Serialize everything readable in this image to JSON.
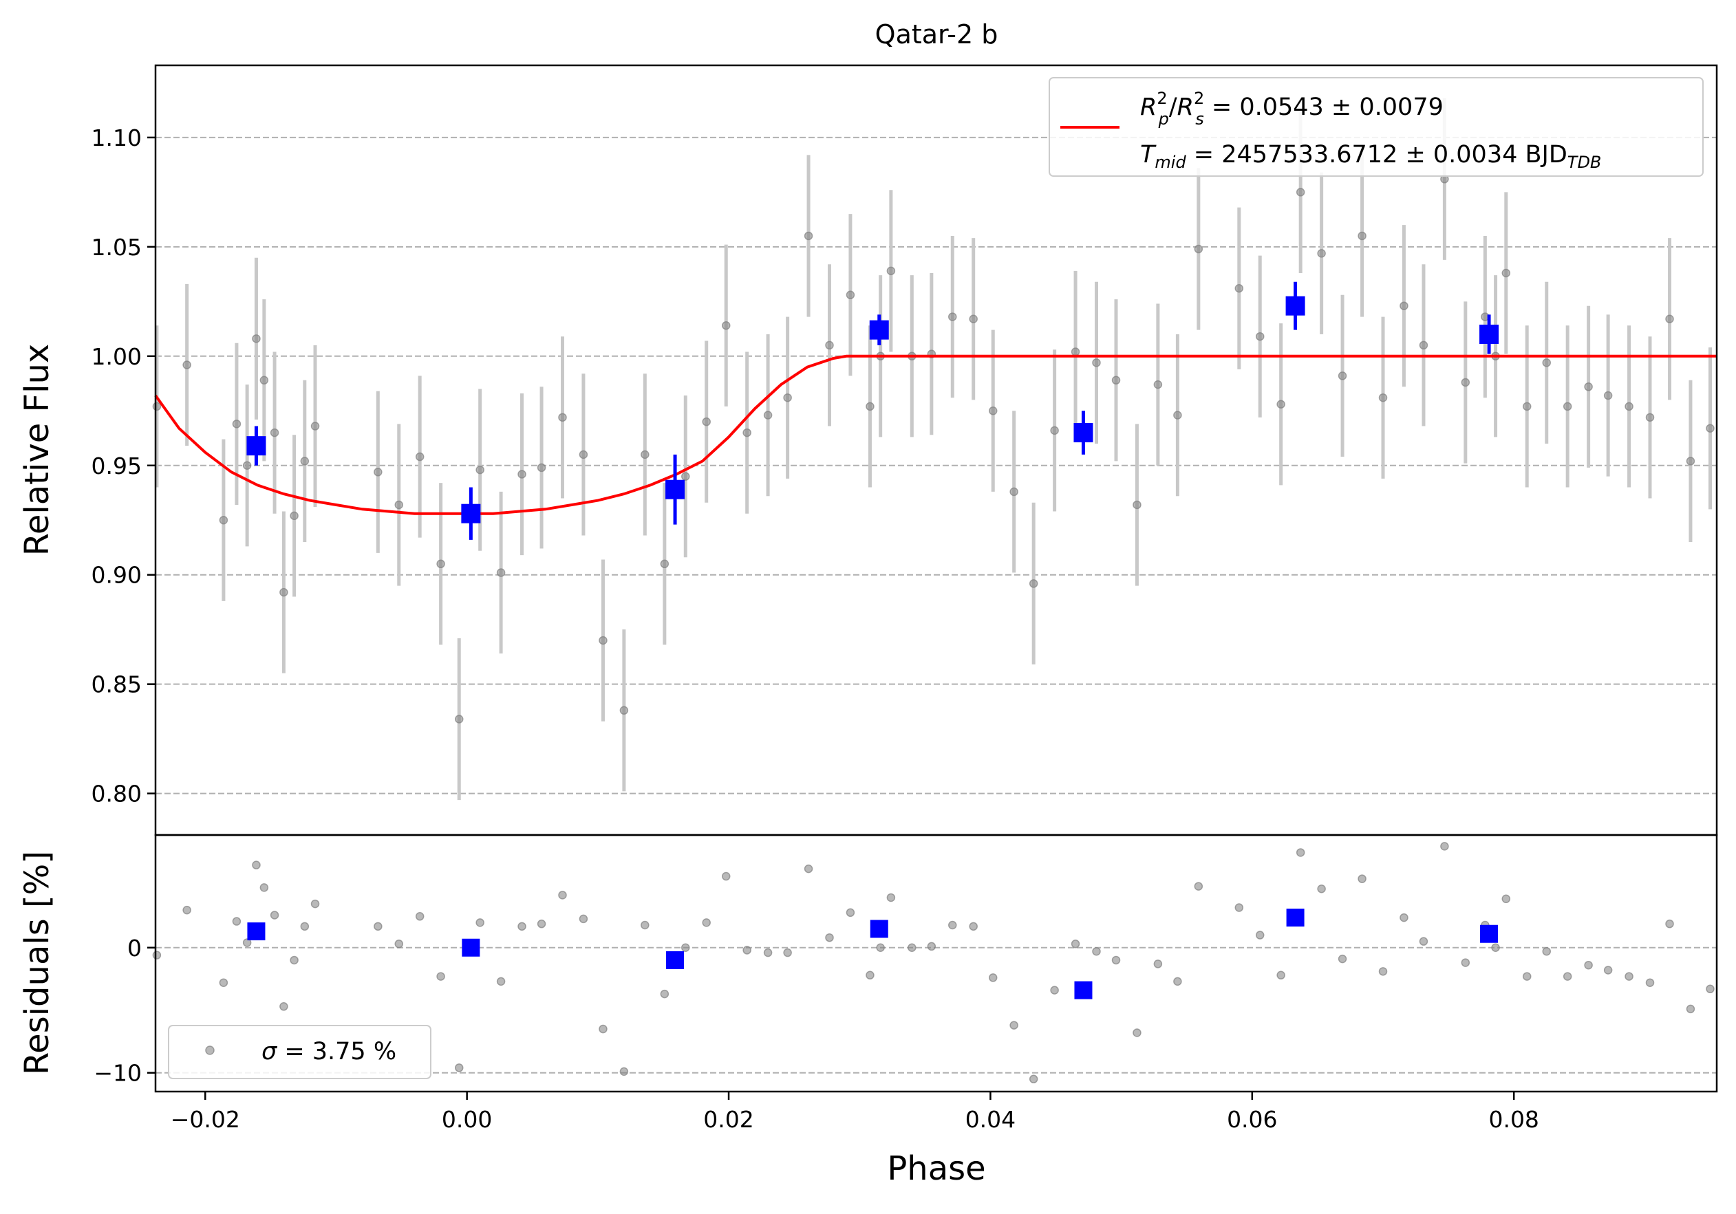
{
  "chart_data": {
    "type": "scatter",
    "title": "Qatar-2 b",
    "xlabel": "Phase",
    "xlim": [
      -0.0238,
      0.0955
    ],
    "xticks": [
      -0.02,
      0.0,
      0.02,
      0.04,
      0.06,
      0.08
    ],
    "xtick_labels": [
      "−0.02",
      "0.00",
      "0.02",
      "0.04",
      "0.06",
      "0.08"
    ],
    "top_panel": {
      "ylabel": "Relative Flux",
      "ylim": [
        0.781,
        1.133
      ],
      "yticks": [
        0.8,
        0.85,
        0.9,
        0.95,
        1.0,
        1.05,
        1.1
      ],
      "ytick_labels": [
        "0.80",
        "0.85",
        "0.90",
        "0.95",
        "1.00",
        "1.05",
        "1.10"
      ],
      "grid": "horizontal dashed",
      "legend": {
        "placement": "top-right",
        "line1_text": " = 0.0543 ± 0.0079",
        "line2_text": " = 2457533.6712 ± 0.0034 BJD",
        "line2_subscript": "TDB",
        "tmid_sub": "mid"
      }
    },
    "bottom_panel": {
      "ylabel": "Residuals [%]",
      "ylim": [
        -11.5,
        9.0
      ],
      "yticks": [
        -10,
        0
      ],
      "ytick_labels": [
        "−10",
        "0"
      ],
      "grid": "horizontal dashed",
      "legend": {
        "placement": "bottom-left",
        "sigma_text": " = 3.75 %"
      }
    },
    "series": [
      {
        "kind": "raw",
        "color": "#808080",
        "x": [
          -0.0237,
          -0.0214,
          -0.0186,
          -0.0176,
          -0.0168,
          -0.0161,
          -0.0155,
          -0.0147,
          -0.014,
          -0.0132,
          -0.0124,
          -0.0116,
          -0.0068,
          -0.0052,
          -0.0036,
          -0.002,
          -0.0006,
          0.001,
          0.0026,
          0.0042,
          0.0057,
          0.0073,
          0.0089,
          0.0104,
          0.012,
          0.0136,
          0.0151,
          0.0167,
          0.0183,
          0.0198,
          0.0214,
          0.023,
          0.0245,
          0.0261,
          0.0277,
          0.0293,
          0.0308,
          0.0316,
          0.0324,
          0.034,
          0.0355,
          0.0371,
          0.0387,
          0.0402,
          0.0418,
          0.0433,
          0.0449,
          0.0465,
          0.0481,
          0.0496,
          0.0512,
          0.0528,
          0.0543,
          0.0559,
          0.059,
          0.0606,
          0.0622,
          0.0637,
          0.0653,
          0.0669,
          0.0684,
          0.07,
          0.0716,
          0.0731,
          0.0747,
          0.0763,
          0.0778,
          0.0786,
          0.0794,
          0.081,
          0.0825,
          0.0841,
          0.0857,
          0.0872,
          0.0888,
          0.0904,
          0.0919,
          0.0935,
          0.095
        ],
        "y": [
          0.977,
          0.996,
          0.925,
          0.969,
          0.95,
          1.008,
          0.989,
          0.965,
          0.892,
          0.927,
          0.952,
          0.968,
          0.947,
          0.932,
          0.954,
          0.905,
          0.834,
          0.948,
          0.901,
          0.946,
          0.949,
          0.972,
          0.955,
          0.87,
          0.838,
          0.955,
          0.905,
          0.945,
          0.97,
          1.014,
          0.965,
          0.973,
          0.981,
          1.055,
          1.005,
          1.028,
          0.977,
          1.0,
          1.039,
          1.0,
          1.001,
          1.018,
          1.017,
          0.975,
          0.938,
          0.896,
          0.966,
          1.002,
          0.997,
          0.989,
          0.932,
          0.987,
          0.973,
          1.049,
          1.031,
          1.009,
          0.978,
          1.075,
          1.047,
          0.991,
          1.055,
          0.981,
          1.023,
          1.005,
          1.081,
          0.988,
          1.018,
          1.0,
          1.038,
          0.977,
          0.997,
          0.977,
          0.986,
          0.982,
          0.977,
          0.972,
          1.017,
          0.952,
          0.967
        ],
        "yerr": 0.037,
        "residuals": [
          -0.6,
          3.0,
          -2.8,
          2.1,
          0.4,
          6.6,
          4.8,
          2.6,
          -4.7,
          -1.0,
          1.7,
          3.5,
          1.7,
          0.3,
          2.5,
          -2.3,
          -9.6,
          2.0,
          -2.7,
          1.7,
          1.9,
          4.2,
          2.3,
          -6.5,
          -9.9,
          1.8,
          -3.7,
          0.0,
          2.0,
          5.7,
          -0.2,
          -0.4,
          -0.4,
          6.3,
          0.8,
          2.8,
          -2.2,
          0.0,
          4.0,
          0.0,
          0.1,
          1.8,
          1.7,
          -2.4,
          -6.2,
          -10.5,
          -3.4,
          0.3,
          -0.3,
          -1.0,
          -6.8,
          -1.3,
          -2.7,
          4.9,
          3.2,
          1.0,
          -2.2,
          7.6,
          4.7,
          -0.9,
          5.5,
          -1.9,
          2.4,
          0.5,
          8.1,
          -1.2,
          1.8,
          0.0,
          3.9,
          -2.3,
          -0.3,
          -2.3,
          -1.4,
          -1.8,
          -2.3,
          -2.8,
          1.9,
          -4.9,
          -3.3
        ]
      },
      {
        "kind": "binned",
        "color": "#0000ff",
        "x": [
          -0.0161,
          0.0003,
          0.0159,
          0.0315,
          0.0471,
          0.0633,
          0.0781
        ],
        "y": [
          0.959,
          0.928,
          0.939,
          1.012,
          0.965,
          1.023,
          1.01
        ],
        "yerr": [
          0.009,
          0.012,
          0.016,
          0.007,
          0.01,
          0.011,
          0.009
        ],
        "residuals": [
          1.3,
          0.0,
          -1.0,
          1.5,
          -3.4,
          2.4,
          1.1
        ]
      },
      {
        "kind": "model",
        "color": "#ff0000",
        "x": [
          -0.0238,
          -0.022,
          -0.02,
          -0.018,
          -0.016,
          -0.014,
          -0.012,
          -0.01,
          -0.008,
          -0.006,
          -0.004,
          -0.002,
          0.0,
          0.002,
          0.004,
          0.006,
          0.008,
          0.01,
          0.012,
          0.014,
          0.016,
          0.018,
          0.02,
          0.022,
          0.024,
          0.026,
          0.028,
          0.029,
          0.03,
          0.0955
        ],
        "y": [
          0.982,
          0.967,
          0.956,
          0.947,
          0.941,
          0.937,
          0.934,
          0.932,
          0.93,
          0.929,
          0.928,
          0.928,
          0.928,
          0.928,
          0.929,
          0.93,
          0.932,
          0.934,
          0.937,
          0.941,
          0.946,
          0.952,
          0.963,
          0.976,
          0.987,
          0.995,
          0.999,
          1.0,
          1.0,
          1.0
        ]
      }
    ]
  }
}
